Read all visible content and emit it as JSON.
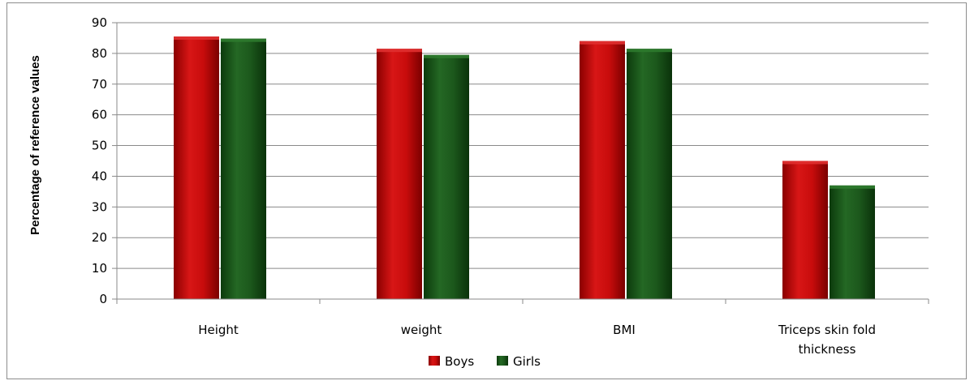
{
  "chart_data": {
    "type": "bar",
    "title": "",
    "xlabel": "",
    "ylabel": "Percentage of reference values",
    "ylim": [
      0,
      90
    ],
    "yticks": [
      0,
      10,
      20,
      30,
      40,
      50,
      60,
      70,
      80,
      90
    ],
    "grid": true,
    "legend_position": "bottom",
    "categories": [
      [
        "Height"
      ],
      [
        "weight"
      ],
      [
        "BMI"
      ],
      [
        "Triceps skin fold",
        "thickness"
      ]
    ],
    "series": [
      {
        "name": "Boys",
        "color": "#c00000",
        "values": [
          85.5,
          81.5,
          84,
          45
        ]
      },
      {
        "name": "Girls",
        "color": "#1f5a1f",
        "values": [
          84.8,
          79.5,
          81.5,
          37
        ]
      }
    ]
  }
}
